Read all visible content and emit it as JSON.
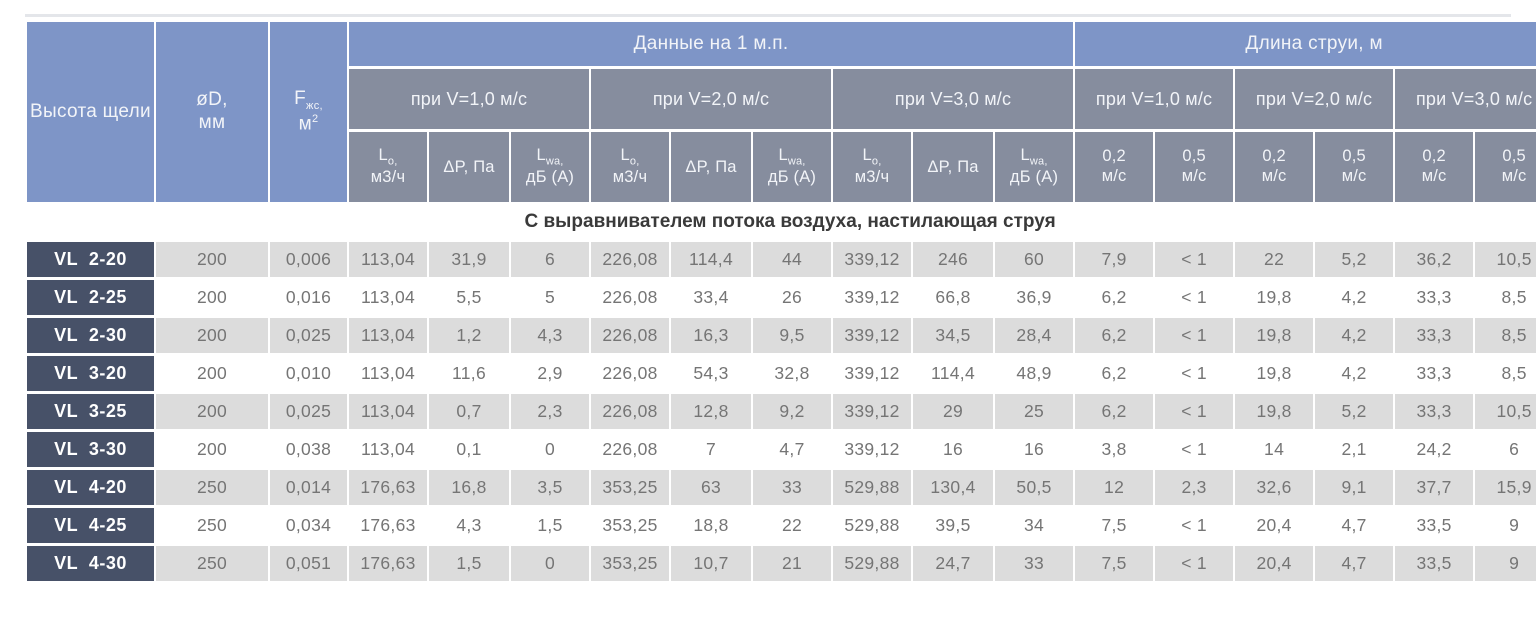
{
  "colors": {
    "header_blue": "#7e95c7",
    "header_gray": "#868d9e",
    "row_label_dark": "#475168",
    "row_alt_gray": "#dcdcdc",
    "row_white": "#ffffff",
    "data_text": "#757575"
  },
  "header": {
    "height_title": "Высота щели",
    "d_line1": "øD,",
    "d_line2": "мм",
    "f_base": "F",
    "f_sub": "жс,",
    "f_unit_base": "м",
    "f_unit_sup": "2",
    "data_title": "Данные на 1 м.п.",
    "jet_title": "Длина струи, м",
    "v_labels": [
      "при V=1,0 м/с",
      "при V=2,0 м/с",
      "при V=3,0 м/с"
    ],
    "lo_base": "L",
    "lo_sub": "o,",
    "lo_line2": "м3/ч",
    "dp_label": "ΔP, Па",
    "lwa_base": "L",
    "lwa_sub": "wa,",
    "lwa_line2": "дБ (А)",
    "speed_02": "0,2",
    "speed_05": "0,5",
    "speed_unit": "м/с"
  },
  "banner": "С выравнивателем потока воздуха, настилающая струя",
  "rows": [
    {
      "label": "VL  2-20",
      "values": [
        "200",
        "0,006",
        "113,04",
        "31,9",
        "6",
        "226,08",
        "114,4",
        "44",
        "339,12",
        "246",
        "60",
        "7,9",
        "< 1",
        "22",
        "5,2",
        "36,2",
        "10,5"
      ]
    },
    {
      "label": "VL  2-25",
      "values": [
        "200",
        "0,016",
        "113,04",
        "5,5",
        "5",
        "226,08",
        "33,4",
        "26",
        "339,12",
        "66,8",
        "36,9",
        "6,2",
        "< 1",
        "19,8",
        "4,2",
        "33,3",
        "8,5"
      ]
    },
    {
      "label": "VL  2-30",
      "values": [
        "200",
        "0,025",
        "113,04",
        "1,2",
        "4,3",
        "226,08",
        "16,3",
        "9,5",
        "339,12",
        "34,5",
        "28,4",
        "6,2",
        "< 1",
        "19,8",
        "4,2",
        "33,3",
        "8,5"
      ]
    },
    {
      "label": "VL  3-20",
      "values": [
        "200",
        "0,010",
        "113,04",
        "11,6",
        "2,9",
        "226,08",
        "54,3",
        "32,8",
        "339,12",
        "114,4",
        "48,9",
        "6,2",
        "< 1",
        "19,8",
        "4,2",
        "33,3",
        "8,5"
      ]
    },
    {
      "label": "VL  3-25",
      "values": [
        "200",
        "0,025",
        "113,04",
        "0,7",
        "2,3",
        "226,08",
        "12,8",
        "9,2",
        "339,12",
        "29",
        "25",
        "6,2",
        "< 1",
        "19,8",
        "5,2",
        "33,3",
        "10,5"
      ]
    },
    {
      "label": "VL  3-30",
      "values": [
        "200",
        "0,038",
        "113,04",
        "0,1",
        "0",
        "226,08",
        "7",
        "4,7",
        "339,12",
        "16",
        "16",
        "3,8",
        "< 1",
        "14",
        "2,1",
        "24,2",
        "6"
      ]
    },
    {
      "label": "VL  4-20",
      "values": [
        "250",
        "0,014",
        "176,63",
        "16,8",
        "3,5",
        "353,25",
        "63",
        "33",
        "529,88",
        "130,4",
        "50,5",
        "12",
        "2,3",
        "32,6",
        "9,1",
        "37,7",
        "15,9"
      ]
    },
    {
      "label": "VL  4-25",
      "values": [
        "250",
        "0,034",
        "176,63",
        "4,3",
        "1,5",
        "353,25",
        "18,8",
        "22",
        "529,88",
        "39,5",
        "34",
        "7,5",
        "< 1",
        "20,4",
        "4,7",
        "33,5",
        "9"
      ]
    },
    {
      "label": "VL  4-30",
      "values": [
        "250",
        "0,051",
        "176,63",
        "1,5",
        "0",
        "353,25",
        "10,7",
        "21",
        "529,88",
        "24,7",
        "33",
        "7,5",
        "< 1",
        "20,4",
        "4,7",
        "33,5",
        "9"
      ]
    }
  ]
}
